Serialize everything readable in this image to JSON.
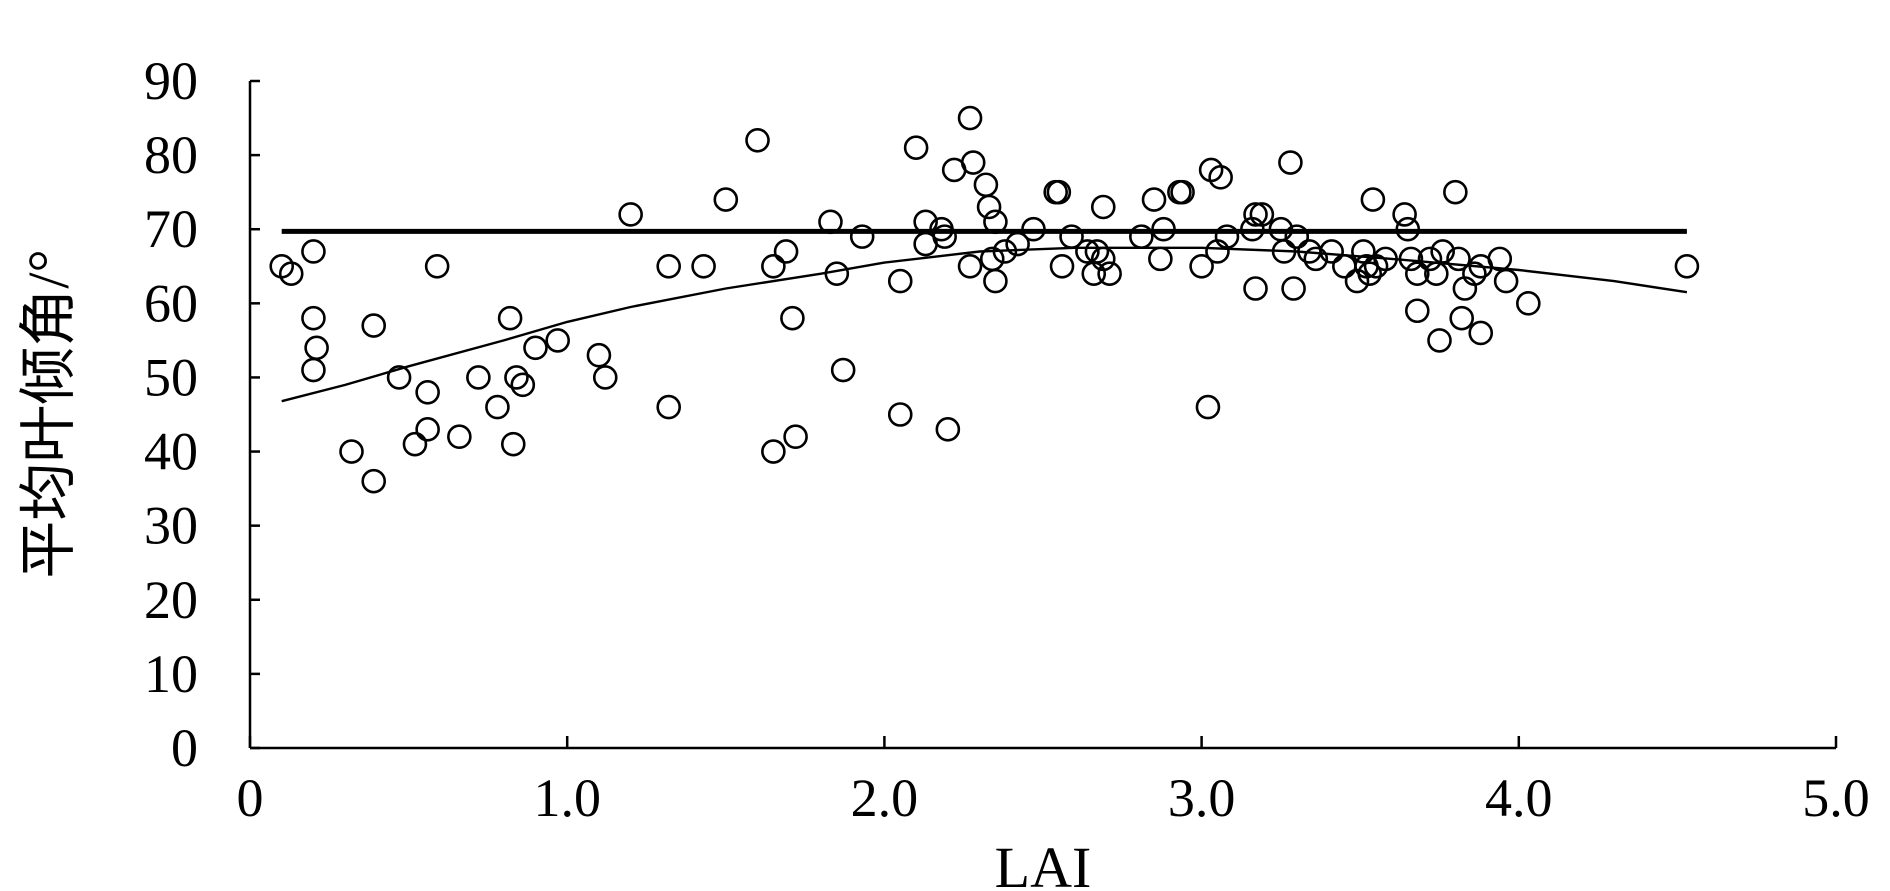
{
  "chart_data": {
    "type": "scatter",
    "title": "",
    "xlabel": "LAI",
    "ylabel": "平均叶倾角/°",
    "xlim": [
      0,
      5.0
    ],
    "ylim": [
      0,
      90
    ],
    "x_ticks": [
      "0",
      "1.0",
      "2.0",
      "3.0",
      "4.0",
      "5.0"
    ],
    "y_ticks": [
      "0",
      "10",
      "20",
      "30",
      "40",
      "50",
      "60",
      "70",
      "80",
      "90"
    ],
    "grid": false,
    "legend": "none",
    "series": [
      {
        "type": "scatter",
        "marker": "open-circle",
        "color": "#000000",
        "points": [
          [
            0.1,
            65
          ],
          [
            0.13,
            64
          ],
          [
            0.2,
            67
          ],
          [
            0.2,
            58
          ],
          [
            0.21,
            54
          ],
          [
            0.2,
            51
          ],
          [
            0.32,
            40
          ],
          [
            0.39,
            36
          ],
          [
            0.39,
            57
          ],
          [
            0.47,
            50
          ],
          [
            0.52,
            41
          ],
          [
            0.56,
            48
          ],
          [
            0.56,
            43
          ],
          [
            0.59,
            65
          ],
          [
            0.66,
            42
          ],
          [
            0.72,
            50
          ],
          [
            0.78,
            46
          ],
          [
            0.82,
            58
          ],
          [
            0.83,
            41
          ],
          [
            0.84,
            50
          ],
          [
            0.86,
            49
          ],
          [
            0.9,
            54
          ],
          [
            0.97,
            55
          ],
          [
            1.1,
            53
          ],
          [
            1.12,
            50
          ],
          [
            1.2,
            72
          ],
          [
            1.32,
            65
          ],
          [
            1.32,
            46
          ],
          [
            1.43,
            65
          ],
          [
            1.5,
            74
          ],
          [
            1.6,
            82
          ],
          [
            1.65,
            65
          ],
          [
            1.65,
            40
          ],
          [
            1.69,
            67
          ],
          [
            1.71,
            58
          ],
          [
            1.72,
            42
          ],
          [
            1.83,
            71
          ],
          [
            1.85,
            64
          ],
          [
            1.87,
            51
          ],
          [
            1.93,
            69
          ],
          [
            2.05,
            63
          ],
          [
            2.05,
            45
          ],
          [
            2.1,
            81
          ],
          [
            2.13,
            68
          ],
          [
            2.13,
            71
          ],
          [
            2.18,
            70
          ],
          [
            2.19,
            69
          ],
          [
            2.2,
            43
          ],
          [
            2.22,
            78
          ],
          [
            2.27,
            85
          ],
          [
            2.28,
            79
          ],
          [
            2.27,
            65
          ],
          [
            2.32,
            76
          ],
          [
            2.33,
            73
          ],
          [
            2.35,
            71
          ],
          [
            2.34,
            66
          ],
          [
            2.35,
            63
          ],
          [
            2.38,
            67
          ],
          [
            2.42,
            68
          ],
          [
            2.47,
            70
          ],
          [
            2.54,
            75
          ],
          [
            2.55,
            75
          ],
          [
            2.56,
            65
          ],
          [
            2.59,
            69
          ],
          [
            2.64,
            67
          ],
          [
            2.66,
            64
          ],
          [
            2.67,
            67
          ],
          [
            2.69,
            73
          ],
          [
            2.69,
            66
          ],
          [
            2.71,
            64
          ],
          [
            2.81,
            69
          ],
          [
            2.85,
            74
          ],
          [
            2.87,
            66
          ],
          [
            2.88,
            70
          ],
          [
            2.93,
            75
          ],
          [
            2.94,
            75
          ],
          [
            3.0,
            65
          ],
          [
            3.02,
            46
          ],
          [
            3.03,
            78
          ],
          [
            3.06,
            77
          ],
          [
            3.05,
            67
          ],
          [
            3.08,
            69
          ],
          [
            3.16,
            70
          ],
          [
            3.17,
            72
          ],
          [
            3.19,
            72
          ],
          [
            3.17,
            62
          ],
          [
            3.25,
            70
          ],
          [
            3.26,
            67
          ],
          [
            3.28,
            79
          ],
          [
            3.3,
            69
          ],
          [
            3.29,
            62
          ],
          [
            3.34,
            67
          ],
          [
            3.36,
            66
          ],
          [
            3.41,
            67
          ],
          [
            3.45,
            65
          ],
          [
            3.49,
            63
          ],
          [
            3.51,
            67
          ],
          [
            3.52,
            65
          ],
          [
            3.54,
            74
          ],
          [
            3.53,
            64
          ],
          [
            3.55,
            65
          ],
          [
            3.58,
            66
          ],
          [
            3.64,
            72
          ],
          [
            3.65,
            70
          ],
          [
            3.66,
            66
          ],
          [
            3.68,
            59
          ],
          [
            3.68,
            64
          ],
          [
            3.72,
            66
          ],
          [
            3.74,
            64
          ],
          [
            3.75,
            55
          ],
          [
            3.76,
            67
          ],
          [
            3.8,
            75
          ],
          [
            3.81,
            66
          ],
          [
            3.82,
            58
          ],
          [
            3.83,
            62
          ],
          [
            3.86,
            64
          ],
          [
            3.88,
            65
          ],
          [
            3.88,
            56
          ],
          [
            3.94,
            66
          ],
          [
            3.96,
            63
          ],
          [
            4.03,
            60
          ],
          [
            4.53,
            65
          ]
        ]
      },
      {
        "type": "line",
        "style": "thick",
        "color": "#000000",
        "points": [
          [
            0.1,
            69.7
          ],
          [
            4.53,
            69.7
          ]
        ]
      },
      {
        "type": "line",
        "style": "thin",
        "color": "#000000",
        "points": [
          [
            0.1,
            46.8
          ],
          [
            0.3,
            49
          ],
          [
            0.5,
            51.5
          ],
          [
            0.8,
            55
          ],
          [
            1.0,
            57.5
          ],
          [
            1.2,
            59.5
          ],
          [
            1.5,
            62
          ],
          [
            1.8,
            64
          ],
          [
            2.0,
            65.5
          ],
          [
            2.3,
            67
          ],
          [
            2.6,
            67.5
          ],
          [
            3.0,
            67.5
          ],
          [
            3.3,
            67
          ],
          [
            3.6,
            66
          ],
          [
            4.0,
            64.5
          ],
          [
            4.3,
            63
          ],
          [
            4.53,
            61.5
          ]
        ]
      }
    ]
  }
}
